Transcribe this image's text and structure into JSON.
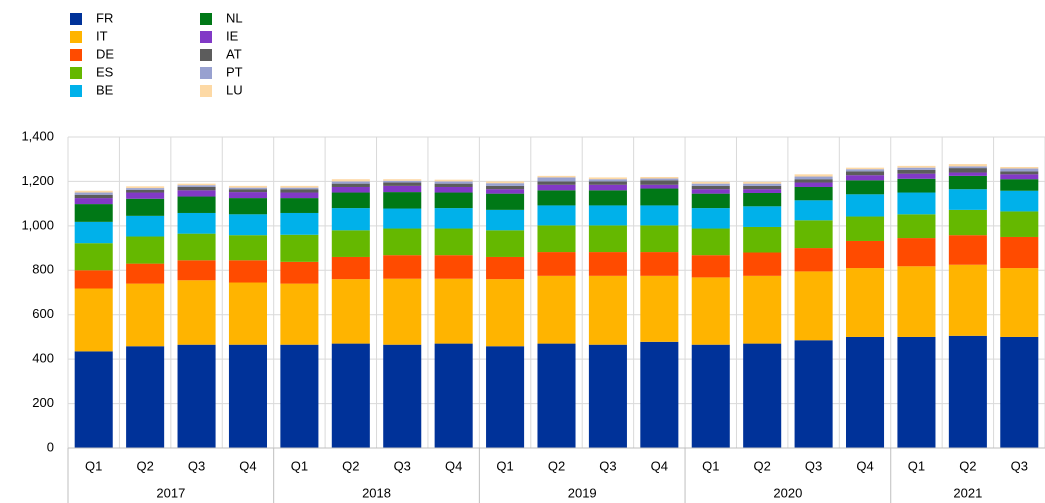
{
  "chart_data": {
    "type": "stacked_bar",
    "categories": [
      "Q1",
      "Q2",
      "Q3",
      "Q4",
      "Q1",
      "Q2",
      "Q3",
      "Q4",
      "Q1",
      "Q2",
      "Q3",
      "Q4",
      "Q1",
      "Q2",
      "Q3",
      "Q4",
      "Q1",
      "Q2",
      "Q3"
    ],
    "groups": [
      "2017",
      "2018",
      "2019",
      "2020",
      "2021"
    ],
    "series": [
      {
        "name": "FR",
        "color": "#003299",
        "values": [
          435,
          458,
          465,
          465,
          465,
          470,
          465,
          470,
          458,
          470,
          465,
          478,
          465,
          470,
          485,
          500,
          500,
          505,
          500
        ]
      },
      {
        "name": "IT",
        "color": "#ffb400",
        "values": [
          283,
          282,
          290,
          280,
          275,
          290,
          297,
          292,
          302,
          305,
          310,
          297,
          303,
          305,
          310,
          310,
          318,
          320,
          310
        ]
      },
      {
        "name": "DE",
        "color": "#ff4b00",
        "values": [
          82,
          90,
          90,
          100,
          98,
          100,
          106,
          106,
          100,
          107,
          107,
          107,
          100,
          105,
          105,
          122,
          127,
          133,
          140
        ]
      },
      {
        "name": "ES",
        "color": "#65b800",
        "values": [
          122,
          122,
          120,
          113,
          122,
          120,
          120,
          120,
          120,
          120,
          120,
          120,
          120,
          115,
          125,
          110,
          107,
          114,
          115
        ]
      },
      {
        "name": "BE",
        "color": "#00b1ea",
        "values": [
          96,
          93,
          93,
          94,
          98,
          100,
          90,
          92,
          92,
          90,
          90,
          90,
          92,
          93,
          90,
          100,
          98,
          93,
          93
        ]
      },
      {
        "name": "NL",
        "color": "#007816",
        "values": [
          80,
          77,
          74,
          73,
          67,
          70,
          74,
          70,
          73,
          68,
          68,
          76,
          65,
          60,
          60,
          63,
          62,
          60,
          52
        ]
      },
      {
        "name": "IE",
        "color": "#8139c6",
        "values": [
          27,
          28,
          28,
          27,
          25,
          25,
          28,
          25,
          20,
          25,
          25,
          17,
          20,
          17,
          20,
          23,
          23,
          15,
          22
        ]
      },
      {
        "name": "AT",
        "color": "#5c5c5c",
        "values": [
          15,
          12,
          15,
          13,
          15,
          15,
          15,
          15,
          15,
          15,
          15,
          20,
          15,
          15,
          15,
          17,
          17,
          20,
          13
        ]
      },
      {
        "name": "PT",
        "color": "#98a1d0",
        "values": [
          10,
          8,
          8,
          7,
          7,
          10,
          8,
          10,
          12,
          18,
          10,
          8,
          10,
          10,
          12,
          10,
          10,
          8,
          13
        ]
      },
      {
        "name": "LU",
        "color": "#fdd9a5",
        "values": [
          8,
          8,
          7,
          8,
          8,
          10,
          7,
          8,
          8,
          7,
          8,
          7,
          8,
          8,
          10,
          7,
          8,
          10,
          7
        ]
      }
    ],
    "ylim": [
      0,
      1400
    ],
    "yticks": [
      0,
      200,
      400,
      600,
      800,
      {
        "value": 1000,
        "label": "1,000"
      },
      {
        "value": 1200,
        "label": "1,200"
      },
      {
        "value": 1400,
        "label": "1,400"
      }
    ],
    "grid": true,
    "legend": "top-left"
  }
}
